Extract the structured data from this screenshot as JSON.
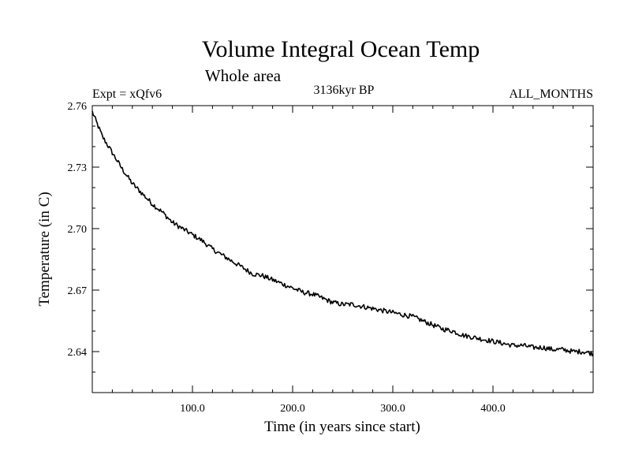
{
  "chart_data": {
    "type": "line",
    "title": "Volume Integral Ocean Temp",
    "subtitle": "Whole area",
    "experiment": "Expt = xQfv6",
    "period": "3136kyr BP",
    "months": "ALL_MONTHS",
    "xlabel": "Time (in years since start)",
    "ylabel": "Temperature (in C)",
    "xlim": [
      0,
      500
    ],
    "ylim": [
      2.62,
      2.76
    ],
    "xticks": [
      100,
      200,
      300,
      400
    ],
    "xtick_labels": [
      "100.0",
      "200.0",
      "300.0",
      "400.0"
    ],
    "yticks": [
      2.64,
      2.67,
      2.7,
      2.73,
      2.76
    ],
    "ytick_labels": [
      "2.64",
      "2.67",
      "2.70",
      "2.73",
      "2.76"
    ],
    "grid": false,
    "series": [
      {
        "name": "Volume Integral Ocean Temp",
        "color": "#000000",
        "x": [
          0,
          10,
          20,
          30,
          40,
          50,
          60,
          70,
          80,
          90,
          100,
          110,
          120,
          130,
          140,
          150,
          160,
          170,
          180,
          190,
          200,
          210,
          220,
          230,
          240,
          250,
          260,
          270,
          280,
          290,
          300,
          310,
          320,
          330,
          340,
          350,
          360,
          370,
          380,
          390,
          400,
          410,
          420,
          430,
          440,
          450,
          460,
          470,
          480,
          490,
          500
        ],
        "y": [
          2.757,
          2.745,
          2.737,
          2.729,
          2.722,
          2.717,
          2.712,
          2.708,
          2.703,
          2.7,
          2.697,
          2.694,
          2.69,
          2.687,
          2.684,
          2.681,
          2.678,
          2.677,
          2.675,
          2.673,
          2.671,
          2.669,
          2.668,
          2.666,
          2.664,
          2.663,
          2.663,
          2.662,
          2.661,
          2.66,
          2.659,
          2.658,
          2.657,
          2.655,
          2.653,
          2.651,
          2.65,
          2.648,
          2.647,
          2.646,
          2.645,
          2.644,
          2.643,
          2.643,
          2.642,
          2.642,
          2.641,
          2.641,
          2.64,
          2.64,
          2.639
        ]
      }
    ]
  }
}
